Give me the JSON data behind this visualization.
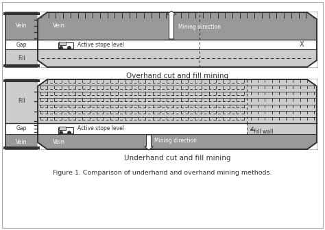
{
  "fig_width": 4.74,
  "fig_height": 3.36,
  "dpi": 100,
  "bg_color": "#ffffff",
  "dark_gray": "#888888",
  "medium_gray": "#aaaaaa",
  "light_gray": "#cccccc",
  "vein_fill": "#999999",
  "panel1_title": "Overhand cut and fill mining",
  "panel2_title": "Underhand cut and fill mining",
  "figure_caption": "Figure 1. Comparison of underhand and overhand mining methods."
}
